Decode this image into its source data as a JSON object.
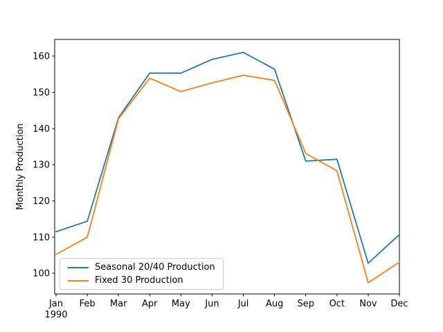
{
  "chart_data": {
    "type": "line",
    "title": "",
    "xlabel": "",
    "ylabel": "Monthly Production",
    "x_year_label": "1990",
    "categories": [
      "Jan",
      "Feb",
      "Mar",
      "Apr",
      "May",
      "Jun",
      "Jul",
      "Aug",
      "Sep",
      "Oct",
      "Nov",
      "Dec"
    ],
    "series": [
      {
        "name": "Seasonal 20/40 Production",
        "color": "#1f77b4",
        "values": [
          111.5,
          114.4,
          143.0,
          155.3,
          155.3,
          159.1,
          161.0,
          156.4,
          131.0,
          131.5,
          102.8,
          110.7
        ]
      },
      {
        "name": "Fixed 30 Production",
        "color": "#ff7f0e",
        "values": [
          105.2,
          110.0,
          142.7,
          153.9,
          150.2,
          152.6,
          154.7,
          153.3,
          133.1,
          128.3,
          97.4,
          103.1
        ]
      }
    ],
    "y_ticks": [
      100,
      110,
      120,
      130,
      140,
      150,
      160
    ],
    "ylim": [
      94.3,
      164.6
    ],
    "grid": false,
    "legend_position": "lower left",
    "axis_color": "#000000",
    "background": "#ffffff"
  }
}
